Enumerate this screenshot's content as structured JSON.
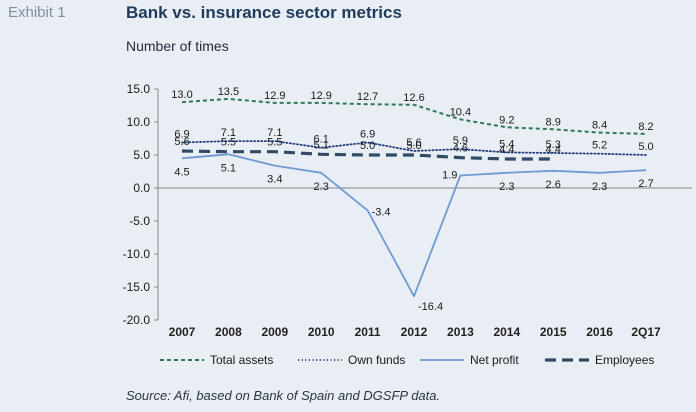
{
  "exhibit_label": "Exhibit 1",
  "title": "Bank vs. insurance sector metrics",
  "subtitle": "Number of times",
  "source": "Source: Afi, based on Bank of Spain and DGSFP data.",
  "colors": {
    "background": "#e9eef5",
    "total_assets": "#2e7a56",
    "own_funds": "#1f3d7a",
    "net_profit": "#6f9ad2",
    "employees": "#334a66",
    "axis": "#888888"
  },
  "chart_data": {
    "type": "line",
    "x": [
      "2007",
      "2008",
      "2009",
      "2010",
      "2011",
      "2012",
      "2013",
      "2014",
      "2015",
      "2016",
      "2Q17"
    ],
    "ylim": [
      -20,
      15
    ],
    "yticks": [
      "15.0",
      "10.0",
      "5.0",
      "0.0",
      "-5.0",
      "-10.0",
      "-15.0",
      "-20.0"
    ],
    "ytick_values": [
      15,
      10,
      5,
      0,
      -5,
      -10,
      -15,
      -20
    ],
    "grid": false,
    "legend_position": "bottom",
    "series": [
      {
        "key": "total_assets",
        "name": "Total assets",
        "style": "dashed",
        "values": [
          13.0,
          13.5,
          12.9,
          12.9,
          12.7,
          12.6,
          10.4,
          9.2,
          8.9,
          8.4,
          8.2
        ],
        "labels": [
          "13.0",
          "13.5",
          "12.9",
          "12.9",
          "12.7",
          "12.6",
          "10.4",
          "9.2",
          "8.9",
          "8.4",
          "8.2"
        ]
      },
      {
        "key": "own_funds",
        "name": "Own funds",
        "style": "dotted",
        "values": [
          6.9,
          7.1,
          7.1,
          6.1,
          6.9,
          5.6,
          5.9,
          5.4,
          5.3,
          5.2,
          5.0
        ],
        "labels": [
          "6.9",
          "7.1",
          "7.1",
          "6.1",
          "6.9",
          "5.6",
          "5.9",
          "5.4",
          "5.3",
          "5.2",
          "5.0"
        ]
      },
      {
        "key": "net_profit",
        "name": "Net profit",
        "style": "solid",
        "values": [
          4.5,
          5.1,
          3.4,
          2.3,
          -3.4,
          -16.4,
          1.9,
          2.3,
          2.6,
          2.3,
          2.7
        ],
        "labels": [
          "4.5",
          "5.1",
          "3.4",
          "2.3",
          "-3.4",
          "-16.4",
          "1.9",
          "2.3",
          "2.6",
          "2.3",
          "2.7"
        ]
      },
      {
        "key": "employees",
        "name": "Employees",
        "style": "longdash",
        "values": [
          5.6,
          5.5,
          5.5,
          5.1,
          5.0,
          5.0,
          4.6,
          4.4,
          4.4,
          null,
          null
        ],
        "labels": [
          "5.6",
          "5.5",
          "5.5",
          "5.1",
          "5.0",
          "5.0",
          "4.6",
          "4.4",
          "4.4",
          null,
          null
        ]
      }
    ]
  }
}
